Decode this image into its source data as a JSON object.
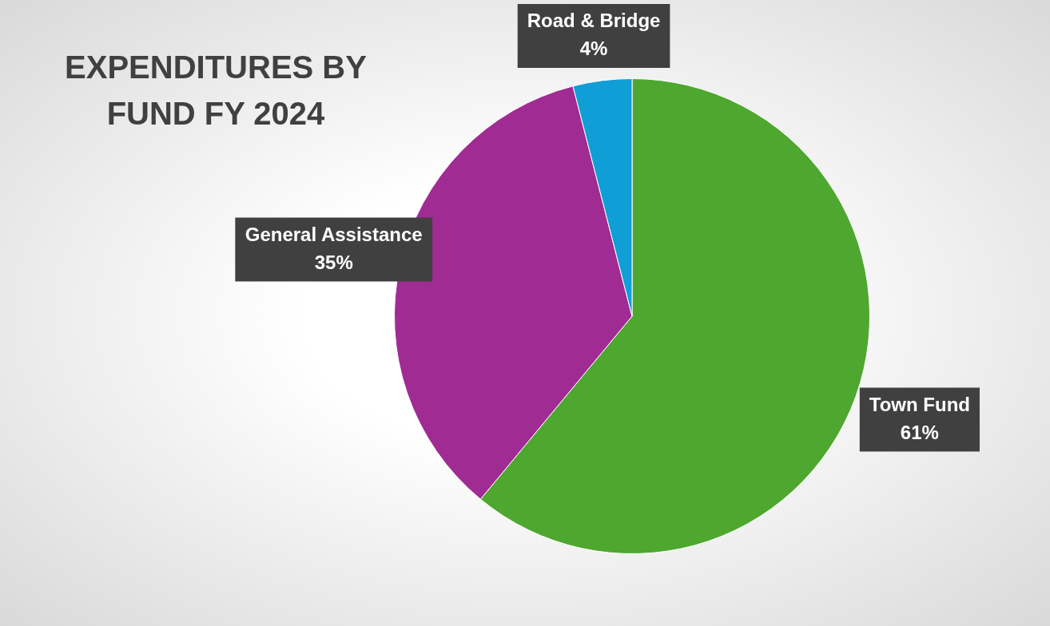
{
  "chart_data": {
    "type": "pie",
    "title": "EXPENDITURES BY FUND FY 2024",
    "categories": [
      "Town Fund",
      "General Assistance",
      "Road & Bridge"
    ],
    "values": [
      61,
      35,
      4
    ],
    "colors": [
      "#4ea72e",
      "#a02b93",
      "#0f9ed5"
    ],
    "value_labels": [
      "61%",
      "35%",
      "4%"
    ],
    "legend": false
  }
}
